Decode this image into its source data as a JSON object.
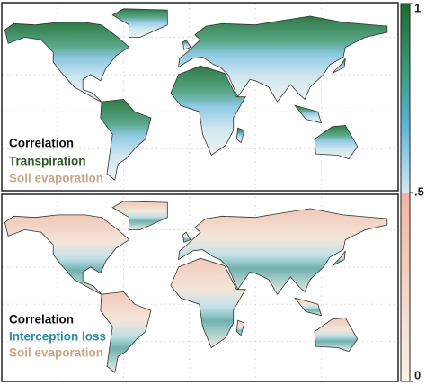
{
  "panels": [
    {
      "title": "Correlation",
      "lines": [
        "Transpiration",
        "Soil evaporation"
      ]
    },
    {
      "title": "Correlation",
      "lines": [
        "Interception loss",
        "Soil evaporation"
      ]
    }
  ],
  "colorbar": {
    "lim": [
      0,
      1
    ],
    "ticks": [
      0,
      {
        "value": 0.5,
        "label": ".5"
      },
      1
    ]
  }
}
